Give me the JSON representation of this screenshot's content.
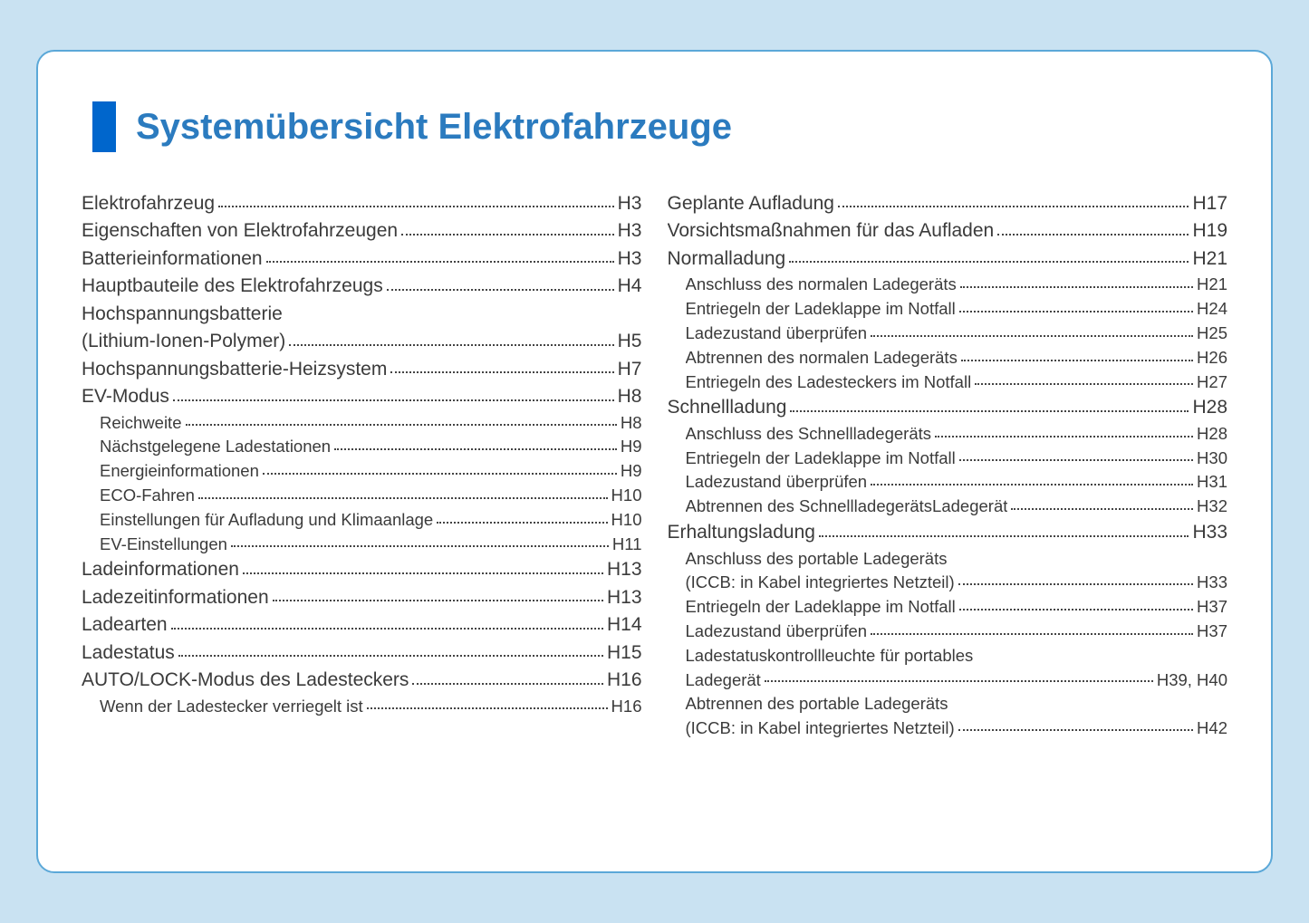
{
  "title": "Systemübersicht Elektrofahrzeuge",
  "colors": {
    "pageBg": "#c9e2f2",
    "cardBg": "#ffffff",
    "cardBorder": "#5ba8d8",
    "titleMarker": "#0066cc",
    "titleText": "#2b7bbf",
    "bodyText": "#3b3b3b"
  },
  "leftColumn": [
    {
      "type": "main",
      "label": "Elektrofahrzeug",
      "page": "H3"
    },
    {
      "type": "main",
      "label": "Eigenschaften von Elektrofahrzeugen",
      "page": "H3"
    },
    {
      "type": "main",
      "label": "Batterieinformationen",
      "page": "H3"
    },
    {
      "type": "main",
      "label": "Hauptbauteile des Elektrofahrzeugs",
      "page": "H4"
    },
    {
      "type": "wrap-main",
      "line1": "Hochspannungsbatterie",
      "line2": "(Lithium-Ionen-Polymer)",
      "page": "H5"
    },
    {
      "type": "main",
      "label": "Hochspannungsbatterie-Heizsystem",
      "page": "H7"
    },
    {
      "type": "main",
      "label": "EV-Modus",
      "page": "H8"
    },
    {
      "type": "sub",
      "label": "Reichweite",
      "page": "H8"
    },
    {
      "type": "sub",
      "label": "Nächstgelegene Ladestationen",
      "page": "H9"
    },
    {
      "type": "sub",
      "label": "Energieinformationen",
      "page": "H9"
    },
    {
      "type": "sub",
      "label": "ECO-Fahren",
      "page": "H10"
    },
    {
      "type": "sub",
      "label": "Einstellungen für Aufladung und Klimaanlage",
      "page": "H10"
    },
    {
      "type": "sub",
      "label": "EV-Einstellungen",
      "page": "H11"
    },
    {
      "type": "main",
      "label": "Ladeinformationen",
      "page": "H13"
    },
    {
      "type": "main",
      "label": "Ladezeitinformationen",
      "page": "H13"
    },
    {
      "type": "main",
      "label": "Ladearten",
      "page": "H14"
    },
    {
      "type": "main",
      "label": "Ladestatus",
      "page": "H15"
    },
    {
      "type": "main",
      "label": "AUTO/LOCK-Modus des Ladesteckers",
      "page": "H16"
    },
    {
      "type": "sub",
      "label": "Wenn der Ladestecker verriegelt ist",
      "page": "H16"
    }
  ],
  "rightColumn": [
    {
      "type": "main",
      "label": "Geplante Aufladung",
      "page": "H17"
    },
    {
      "type": "main",
      "label": "Vorsichtsmaßnahmen für das Aufladen",
      "page": "H19"
    },
    {
      "type": "main",
      "label": "Normalladung",
      "page": "H21"
    },
    {
      "type": "sub",
      "label": "Anschluss des normalen Ladegeräts",
      "page": "H21"
    },
    {
      "type": "sub",
      "label": "Entriegeln der Ladeklappe im Notfall",
      "page": "H24"
    },
    {
      "type": "sub",
      "label": "Ladezustand überprüfen",
      "page": "H25"
    },
    {
      "type": "sub",
      "label": "Abtrennen des normalen Ladegeräts",
      "page": "H26"
    },
    {
      "type": "sub",
      "label": "Entriegeln des Ladesteckers im Notfall",
      "page": "H27"
    },
    {
      "type": "main",
      "label": "Schnellladung",
      "page": "H28"
    },
    {
      "type": "sub",
      "label": "Anschluss des Schnellladegeräts",
      "page": "H28"
    },
    {
      "type": "sub",
      "label": "Entriegeln der Ladeklappe im Notfall",
      "page": "H30"
    },
    {
      "type": "sub",
      "label": "Ladezustand überprüfen",
      "page": "H31"
    },
    {
      "type": "sub",
      "label": "Abtrennen des SchnellladegerätsLadegerät",
      "page": "H32"
    },
    {
      "type": "main",
      "label": "Erhaltungsladung",
      "page": "H33"
    },
    {
      "type": "wrap-sub",
      "line1": "Anschluss des portable Ladegeräts",
      "line2": "(ICCB: in Kabel integriertes Netzteil)",
      "page": "H33"
    },
    {
      "type": "sub",
      "label": "Entriegeln der Ladeklappe im Notfall",
      "page": "H37"
    },
    {
      "type": "sub",
      "label": "Ladezustand überprüfen",
      "page": "H37"
    },
    {
      "type": "wrap-sub",
      "line1": "Ladestatuskontrollleuchte für portables",
      "line2": "Ladegerät",
      "page": "H39, H40"
    },
    {
      "type": "wrap-sub",
      "line1": "Abtrennen des portable Ladegeräts",
      "line2": "(ICCB: in Kabel integriertes Netzteil)",
      "page": "H42"
    }
  ]
}
